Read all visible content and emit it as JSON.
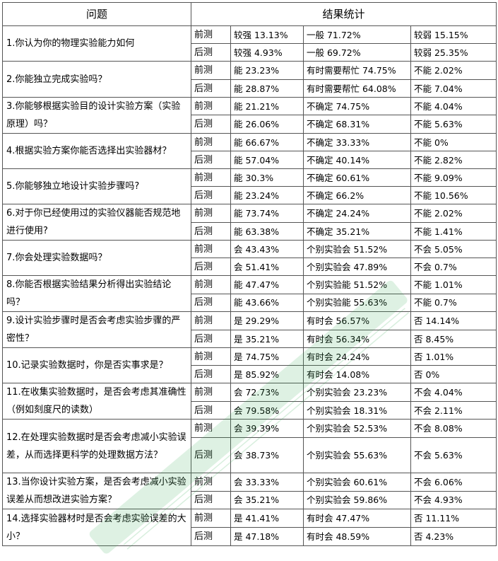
{
  "header": {
    "question": "问题",
    "results": "结果统计"
  },
  "rows": [
    {
      "question": "1.你认为你的物理实验能力如何",
      "pre": {
        "phase": "前测",
        "a": "较强 13.13%",
        "b": "一般 71.72%",
        "c": "较弱 15.15%"
      },
      "post": {
        "phase": "后测",
        "a": "较强 4.93%",
        "b": "一般 69.72%",
        "c": "较弱 25.35%"
      }
    },
    {
      "question": "2.你能独立完成实验吗？",
      "pre": {
        "phase": "前测",
        "a": "能 23.23%",
        "b": "有时需要帮忙 74.75%",
        "c": "不能 2.02%"
      },
      "post": {
        "phase": "后测",
        "a": "能 28.87%",
        "b": "有时需要帮忙 64.08%",
        "c": "不能 7.04%"
      }
    },
    {
      "question": "3.你能够根据实验目的设计实验方案（实验原理）吗？",
      "pre": {
        "phase": "前测",
        "a": "能 21.21%",
        "b": "不确定 74.75%",
        "c": "不能 4.04%"
      },
      "post": {
        "phase": "后测",
        "a": "能 26.06%",
        "b": "不确定 68.31%",
        "c": "不能 5.63%"
      }
    },
    {
      "question": "4.根据实验方案你能否选择出实验器材？",
      "pre": {
        "phase": "前测",
        "a": "能 66.67%",
        "b": "不确定 33.33%",
        "c": "不能 0%"
      },
      "post": {
        "phase": "后测",
        "a": "能 57.04%",
        "b": "不确定 40.14%",
        "c": "不能 2.82%"
      }
    },
    {
      "question": "5.你能够独立地设计实验步骤吗?",
      "pre": {
        "phase": "前测",
        "a": "能 30.3%",
        "b": "不确定 60.61%",
        "c": "不能 9.09%"
      },
      "post": {
        "phase": "后测",
        "a": "能 23.24%",
        "b": "不确定 66.2%",
        "c": "不能 10.56%"
      }
    },
    {
      "question": "6.对于你已经使用过的实验仪器能否规范地进行使用?",
      "pre": {
        "phase": "前测",
        "a": "能 73.74%",
        "b": "不确定 24.24%",
        "c": "不能 2.02%"
      },
      "post": {
        "phase": "后测",
        "a": "能 63.38%",
        "b": "不确定 35.21%",
        "c": "不能 1.41%"
      }
    },
    {
      "question": "7.你会处理实验数据吗？",
      "pre": {
        "phase": "前测",
        "a": "会 43.43%",
        "b": "个别实验会 51.52%",
        "c": "不会 5.05%"
      },
      "post": {
        "phase": "后测",
        "a": "会 51.41%",
        "b": "个别实验会 47.89%",
        "c": "不会 0.7%"
      }
    },
    {
      "question": "8.你能否根据实验结果分析得出实验结论吗？",
      "pre": {
        "phase": "前测",
        "a": "能 47.47%",
        "b": "个别实验能 51.52%",
        "c": "不能 1.01%"
      },
      "post": {
        "phase": "后测",
        "a": "能 43.66%",
        "b": "个别实验能 55.63%",
        "c": "不能 0.7%"
      }
    },
    {
      "question": "9.设计实验步骤时是否会考虑实验步骤的严密性？",
      "pre": {
        "phase": "前测",
        "a": "是 29.29%",
        "b": "有时会 56.57%",
        "c": "否 14.14%"
      },
      "post": {
        "phase": "后测",
        "a": "是 35.21%",
        "b": "有时会 56.34%",
        "c": "否 8.45%"
      }
    },
    {
      "question": "10.记录实验数据时，你是否实事求是？",
      "pre": {
        "phase": "前测",
        "a": "是 74.75%",
        "b": "有时会 24.24%",
        "c": "否 1.01%"
      },
      "post": {
        "phase": "后测",
        "a": "是 85.92%",
        "b": "有时会 14.08%",
        "c": "否 0%"
      }
    },
    {
      "question": "11.在收集实验数据时，是否会考虑其准确性（例如刻度尺的读数）",
      "pre": {
        "phase": "前测",
        "a": "会 72.73%",
        "b": "个别实验会 23.23%",
        "c": "不会 4.04%"
      },
      "post": {
        "phase": "后测",
        "a": "会 79.58%",
        "b": "个别实验会 18.31%",
        "c": "不会 2.11%"
      }
    },
    {
      "question": "12.在处理实验数据时是否会考虑减小实验误差，从而选择更科学的处理数据方法？",
      "pre": {
        "phase": "前测",
        "a": "会 39.39%",
        "b": "个别实验会 52.53%",
        "c": "不会 8.08%"
      },
      "post": {
        "phase": "后测",
        "a": "会 38.73%",
        "b": "个别实验会 55.63%",
        "c": "不会 5.63%"
      }
    },
    {
      "question": "13.当你设计实验方案，是否会考虑减小实验误差从而想改进实验方案？",
      "pre": {
        "phase": "前测",
        "a": "会 33.33%",
        "b": "个别实验会 60.61%",
        "c": "不会 6.06%"
      },
      "post": {
        "phase": "后测",
        "a": "会 35.21%",
        "b": "个别实验会 59.86%",
        "c": "不会 4.93%"
      }
    },
    {
      "question": "14.选择实验器材时是否会考虑实验误差的大小？",
      "pre": {
        "phase": "前测",
        "a": "是 41.41%",
        "b": "有时会 47.47%",
        "c": "否 11.11%"
      },
      "post": {
        "phase": "后测",
        "a": "是 47.18%",
        "b": "有时会 48.59%",
        "c": "否 4.23%"
      }
    }
  ],
  "colors": {
    "border": "#555555",
    "watermark": "#2fa84f"
  }
}
